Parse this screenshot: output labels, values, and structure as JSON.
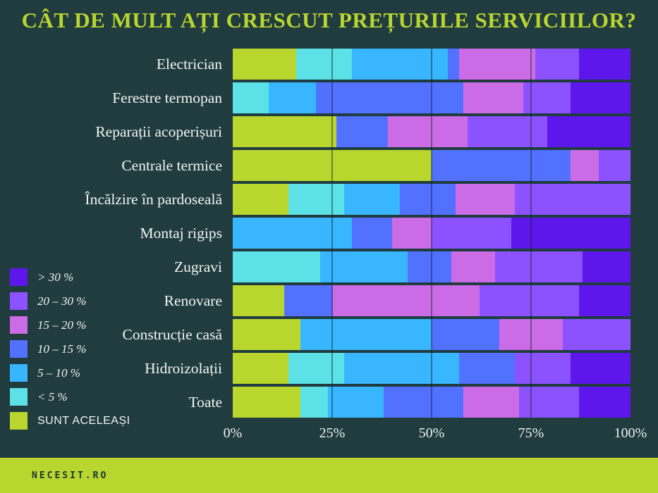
{
  "title": "CÂT DE MULT AȚI CRESCUT PREȚURILE SERVICIILOR?",
  "footer": {
    "brand": "NECESIT.RO"
  },
  "colors": {
    "background": "#203c3f",
    "accent_green": "#b9d62f",
    "text": "#f0f5f3",
    "footer_text": "#1b3538",
    "gridline": "rgba(16,34,37,0.45)"
  },
  "legend": {
    "position": "left",
    "items": [
      {
        "label": "> 30 %",
        "color": "#5e17eb",
        "italic": true
      },
      {
        "label": "20 – 30 %",
        "color": "#8c52ff",
        "italic": true
      },
      {
        "label": "15 – 20 %",
        "color": "#cb6ce6",
        "italic": true
      },
      {
        "label": "10 – 15 %",
        "color": "#5271ff",
        "italic": true
      },
      {
        "label": "5 – 10 %",
        "color": "#38b6ff",
        "italic": true
      },
      {
        "label": "< 5 %",
        "color": "#5ce1e6",
        "italic": true
      },
      {
        "label": "SUNT ACELEAȘI",
        "color": "#b9d62f",
        "italic": false
      }
    ]
  },
  "chart_data": {
    "type": "bar",
    "variant": "horizontal-stacked",
    "title": "CÂT DE MULT AȚI CRESCUT PREȚURILE SERVICIILOR?",
    "unit": "% of respondents",
    "xlim": [
      0,
      100
    ],
    "x_ticks": [
      "0%",
      "25%",
      "50%",
      "75%",
      "100%"
    ],
    "gridlines_at": [
      25,
      50,
      75
    ],
    "grid": true,
    "legend_position": "left",
    "categories": [
      "Electrician",
      "Ferestre termopan",
      "Reparații acoperișuri",
      "Centrale termice",
      "Încălzire în pardoseală",
      "Montaj rigips",
      "Zugravi",
      "Renovare",
      "Construcție casă",
      "Hidroizolații",
      "Toate"
    ],
    "series": [
      {
        "name": "SUNT ACELEAȘI",
        "color": "#b9d62f",
        "values": [
          16,
          0,
          26,
          50,
          14,
          0,
          0,
          13,
          17,
          14,
          17
        ]
      },
      {
        "name": "< 5 %",
        "color": "#5ce1e6",
        "values": [
          14,
          9,
          0,
          0,
          14,
          0,
          22,
          0,
          0,
          14,
          7
        ]
      },
      {
        "name": "5 – 10 %",
        "color": "#38b6ff",
        "values": [
          24,
          12,
          0,
          0,
          14,
          30,
          22,
          0,
          33,
          29,
          14
        ]
      },
      {
        "name": "10 – 15 %",
        "color": "#5271ff",
        "values": [
          3,
          37,
          13,
          35,
          14,
          10,
          11,
          12,
          17,
          14,
          20
        ]
      },
      {
        "name": "15 – 20 %",
        "color": "#cb6ce6",
        "values": [
          19,
          15,
          20,
          7,
          15,
          10,
          11,
          37,
          16,
          0,
          14
        ]
      },
      {
        "name": "20 – 30 %",
        "color": "#8c52ff",
        "values": [
          11,
          12,
          20,
          8,
          29,
          20,
          22,
          25,
          17,
          14,
          15
        ]
      },
      {
        "name": "> 30 %",
        "color": "#5e17eb",
        "values": [
          13,
          15,
          21,
          0,
          0,
          30,
          12,
          13,
          0,
          15,
          13
        ]
      }
    ]
  }
}
